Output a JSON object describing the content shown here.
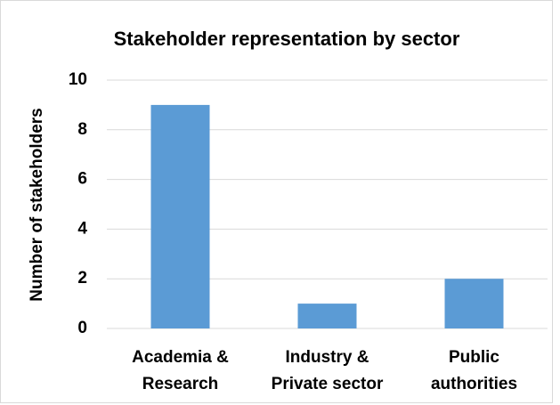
{
  "chart_data": {
    "type": "bar",
    "title": "Stakeholder representation by sector",
    "y_label": "Number of stakeholders",
    "categories": [
      [
        "Academia &",
        "Research"
      ],
      [
        "Industry &",
        "Private sector"
      ],
      [
        "Public",
        "authorities"
      ]
    ],
    "values": [
      9,
      1,
      2
    ],
    "color": "#5b9bd5",
    "ylim": [
      0,
      10
    ],
    "yticks": [
      0,
      2,
      4,
      6,
      8,
      10
    ],
    "grid": true
  }
}
